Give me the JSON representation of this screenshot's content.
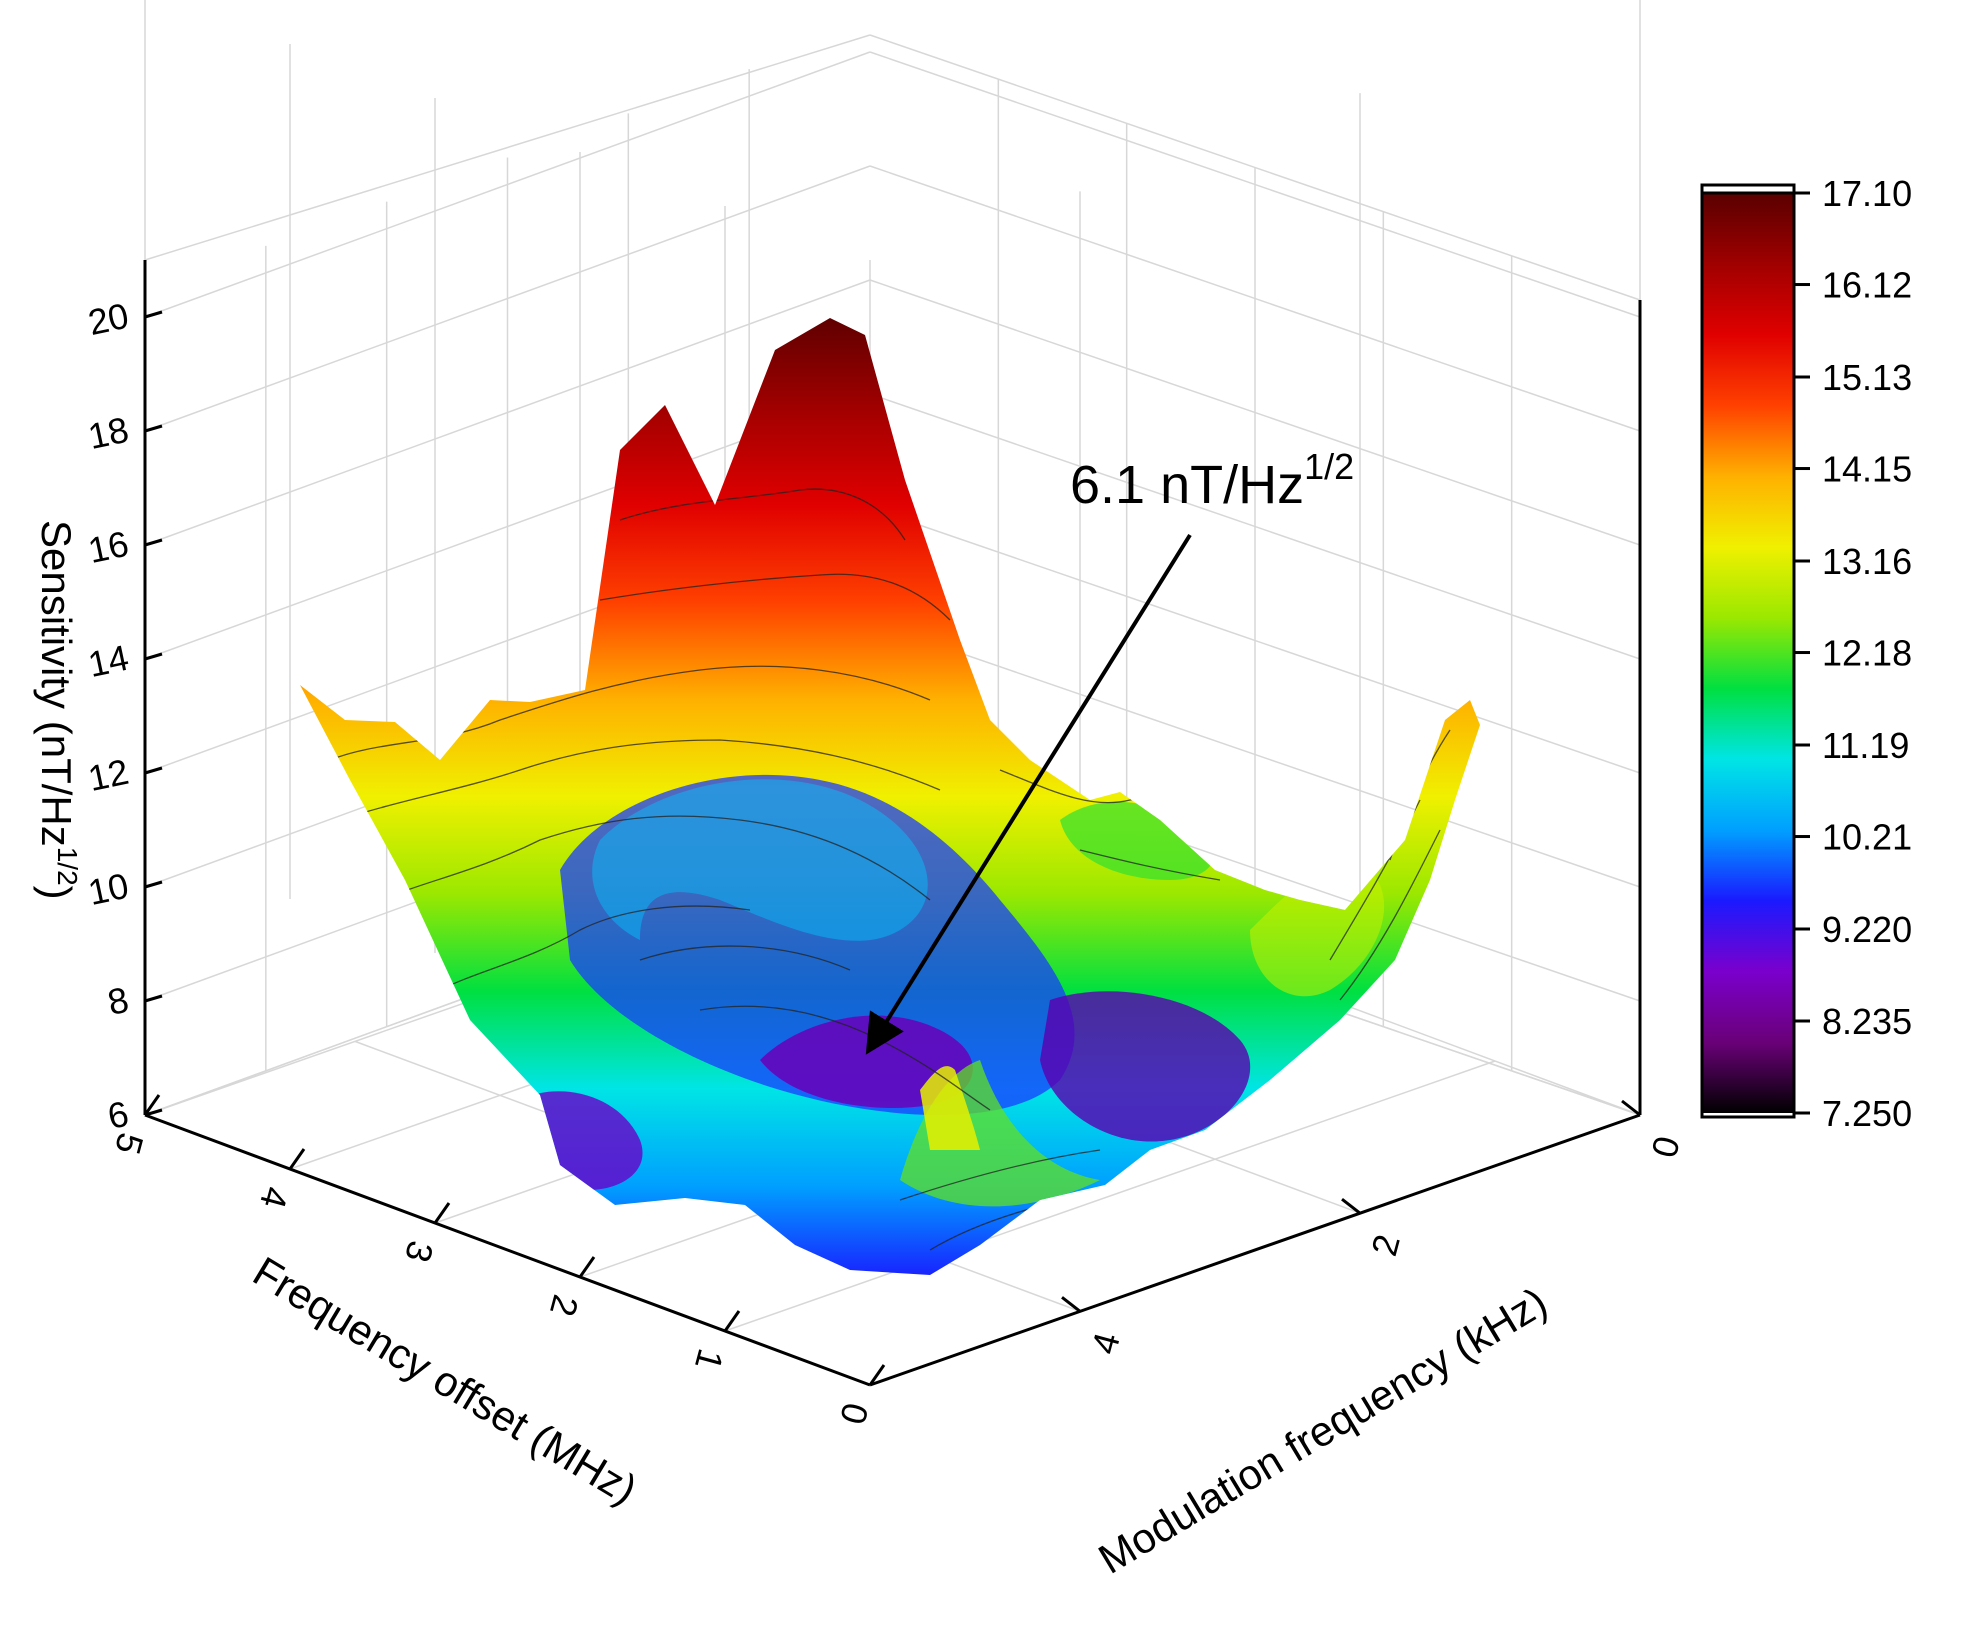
{
  "chart_data": {
    "type": "surface3d",
    "title": "",
    "zlabel": "Sensitivity (nT/Hz",
    "zlabel_sup": "1/2",
    "zlabel_close": ")",
    "xlabel": "Frequency offset (MHz)",
    "ylabel": "Modulation frequency (kHz)",
    "z_ticks": [
      "6",
      "8",
      "10",
      "12",
      "14",
      "16",
      "18",
      "20"
    ],
    "z_range": [
      6,
      21
    ],
    "x_ticks": [
      "5",
      "4",
      "3",
      "2",
      "1",
      "0"
    ],
    "x_range": [
      0,
      5
    ],
    "y_ticks": [
      "0",
      "2",
      "4"
    ],
    "y_range": [
      0,
      5.5
    ],
    "colorbar": {
      "ticks": [
        "17.10",
        "16.12",
        "15.13",
        "14.15",
        "13.16",
        "12.18",
        "11.19",
        "10.21",
        "9.220",
        "8.235",
        "7.250"
      ],
      "min": 7.25,
      "max": 17.1,
      "colors": [
        "#000000",
        "#6a0078",
        "#7a00cc",
        "#1a1aff",
        "#00a0ff",
        "#00e5e5",
        "#00e040",
        "#9be800",
        "#f0f000",
        "#ffb000",
        "#ff4000",
        "#e00000",
        "#a00000",
        "#5a0000"
      ]
    },
    "annotation": {
      "text": "6.1 nT/Hz",
      "sup": "1/2",
      "target": {
        "frequency_offset": 1.7,
        "modulation_frequency": 2.4,
        "sensitivity": 6.1
      }
    },
    "series": [
      {
        "type": "surface",
        "colormap": "rainbow",
        "contour_lines": true
      }
    ]
  }
}
